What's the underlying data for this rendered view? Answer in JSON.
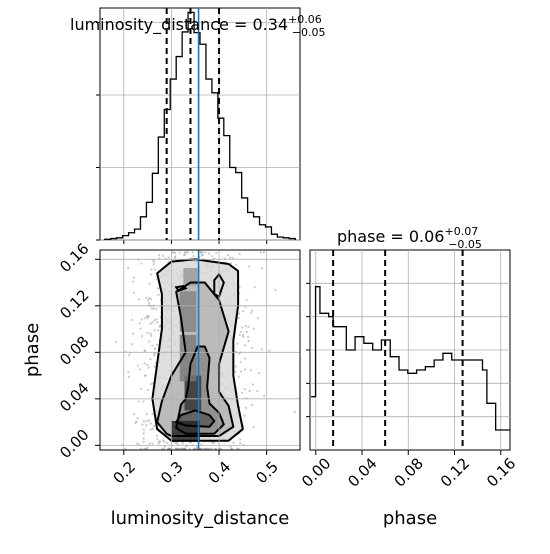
{
  "chart_data": {
    "type": "corner",
    "truth_color": "#1f77b4",
    "panels": [
      {
        "id": "luminosity_distance_1d",
        "type": "histogram",
        "title": {
          "main": "luminosity_distance = 0.34",
          "sup": "+0.06",
          "sub": "−0.05"
        },
        "xlim": [
          0.15,
          0.57
        ],
        "ylim": [
          0,
          3200
        ],
        "yticks": [
          0,
          1000,
          2000,
          3000
        ],
        "bin_edges": [
          0.16,
          0.1725,
          0.185,
          0.1975,
          0.21,
          0.2225,
          0.235,
          0.2475,
          0.26,
          0.2725,
          0.285,
          0.2975,
          0.31,
          0.3225,
          0.335,
          0.3475,
          0.36,
          0.3725,
          0.385,
          0.3975,
          0.41,
          0.4225,
          0.435,
          0.4475,
          0.46,
          0.4725,
          0.485,
          0.4975,
          0.51,
          0.5225,
          0.535,
          0.5475,
          0.56
        ],
        "counts": [
          10,
          20,
          30,
          60,
          100,
          150,
          320,
          520,
          920,
          1420,
          1800,
          2220,
          2530,
          2870,
          3140,
          2860,
          2700,
          2220,
          2030,
          1680,
          1440,
          1000,
          930,
          580,
          380,
          320,
          210,
          180,
          80,
          40,
          30,
          20
        ],
        "quantile_lines": [
          0.29,
          0.34,
          0.4
        ],
        "truth": 0.357
      },
      {
        "id": "phase_1d",
        "type": "histogram",
        "title": {
          "main": "phase = 0.06",
          "sup": "+0.07",
          "sub": "−0.05"
        },
        "xlim": [
          -0.005,
          0.168
        ],
        "ylim": [
          0,
          600
        ],
        "yticks": [
          100,
          200,
          300,
          400,
          500
        ],
        "bin_edges": [
          -0.004,
          -0.0002,
          0.0036,
          0.0074,
          0.0112,
          0.015,
          0.0188,
          0.0226,
          0.0264,
          0.0302,
          0.034,
          0.0378,
          0.0416,
          0.0454,
          0.0492,
          0.053,
          0.0568,
          0.0606,
          0.0644,
          0.0682,
          0.072,
          0.0758,
          0.0796,
          0.0834,
          0.0872,
          0.091,
          0.0948,
          0.0986,
          0.1024,
          0.1062,
          0.11,
          0.1138,
          0.1176,
          0.1214,
          0.1252,
          0.129,
          0.1328,
          0.1366,
          0.1404,
          0.1442,
          0.148,
          0.1518,
          0.1556,
          0.1594,
          0.1632,
          0.168
        ],
        "counts": [
          160,
          490,
          410,
          410,
          400,
          370,
          370,
          370,
          300,
          300,
          340,
          340,
          320,
          320,
          300,
          300,
          330,
          330,
          280,
          280,
          240,
          240,
          230,
          230,
          240,
          240,
          250,
          250,
          270,
          270,
          290,
          290,
          270,
          270,
          270,
          270,
          270,
          270,
          270,
          240,
          140,
          140,
          60,
          60,
          60
        ],
        "quantile_lines": [
          0.015,
          0.06,
          0.127
        ],
        "truth": null
      },
      {
        "id": "joint_2d",
        "type": "contour",
        "xlabel": "luminosity_distance",
        "ylabel": "phase",
        "xlim": [
          0.15,
          0.57
        ],
        "ylim": [
          -0.004,
          0.168
        ],
        "xticks": [
          0.2,
          0.3,
          0.4,
          0.5
        ],
        "xticklabels": [
          "0.2",
          "0.3",
          "0.4",
          "0.5"
        ],
        "yticks": [
          0.0,
          0.04,
          0.08,
          0.12,
          0.16
        ],
        "yticklabels": [
          "0.00",
          "0.04",
          "0.08",
          "0.12",
          "0.16"
        ],
        "truth_x": 0.357,
        "contour_levels": [
          {
            "x": [
              0.33,
              0.38,
              0.39,
              0.38,
              0.35,
              0.32,
              0.31,
              0.33
            ],
            "y": [
              0.017,
              0.016,
              0.021,
              0.026,
              0.03,
              0.026,
              0.02,
              0.017
            ]
          },
          {
            "x": [
              0.33,
              0.39,
              0.41,
              0.4,
              0.38,
              0.375,
              0.38,
              0.37,
              0.355,
              0.34,
              0.335,
              0.33,
              0.32,
              0.315,
              0.31,
              0.33
            ],
            "y": [
              0.01,
              0.01,
              0.018,
              0.028,
              0.036,
              0.05,
              0.075,
              0.085,
              0.085,
              0.07,
              0.05,
              0.04,
              0.035,
              0.025,
              0.015,
              0.01
            ]
          },
          {
            "x": [
              0.3,
              0.4,
              0.43,
              0.42,
              0.4,
              0.4,
              0.42,
              0.4,
              0.37,
              0.34,
              0.31,
              0.32,
              0.33,
              0.3,
              0.28,
              0.27,
              0.29,
              0.3
            ],
            "y": [
              0.008,
              0.008,
              0.016,
              0.034,
              0.046,
              0.07,
              0.098,
              0.125,
              0.14,
              0.14,
              0.132,
              0.11,
              0.08,
              0.06,
              0.038,
              0.02,
              0.01,
              0.008
            ]
          },
          {
            "x": [
              0.3,
              0.42,
              0.45,
              0.44,
              0.43,
              0.43,
              0.44,
              0.44,
              0.42,
              0.35,
              0.3,
              0.27,
              0.28,
              0.28,
              0.27,
              0.26,
              0.27,
              0.3
            ],
            "y": [
              0.004,
              0.004,
              0.014,
              0.034,
              0.06,
              0.09,
              0.12,
              0.15,
              0.156,
              0.16,
              0.158,
              0.148,
              0.13,
              0.1,
              0.07,
              0.04,
              0.014,
              0.004
            ]
          }
        ],
        "inner_islands": [
          {
            "x": [
              0.315,
              0.33,
              0.325,
              0.31,
              0.315
            ],
            "y": [
              0.133,
              0.135,
              0.137,
              0.136,
              0.133
            ]
          },
          {
            "x": [
              0.39,
              0.4,
              0.41,
              0.4,
              0.39,
              0.39
            ],
            "y": [
              0.13,
              0.128,
              0.14,
              0.147,
              0.142,
              0.13
            ]
          }
        ],
        "density_cells": [
          {
            "x": 0.345,
            "y": 0.045,
            "w": 0.035,
            "h": 0.03,
            "v": 0.9
          },
          {
            "x": 0.33,
            "y": 0.012,
            "w": 0.06,
            "h": 0.018,
            "v": 1.0
          },
          {
            "x": 0.335,
            "y": 0.075,
            "w": 0.035,
            "h": 0.04,
            "v": 0.55
          },
          {
            "x": 0.335,
            "y": 0.115,
            "w": 0.035,
            "h": 0.035,
            "v": 0.5
          },
          {
            "x": 0.34,
            "y": 0.145,
            "w": 0.03,
            "h": 0.015,
            "v": 0.4
          }
        ]
      }
    ]
  }
}
